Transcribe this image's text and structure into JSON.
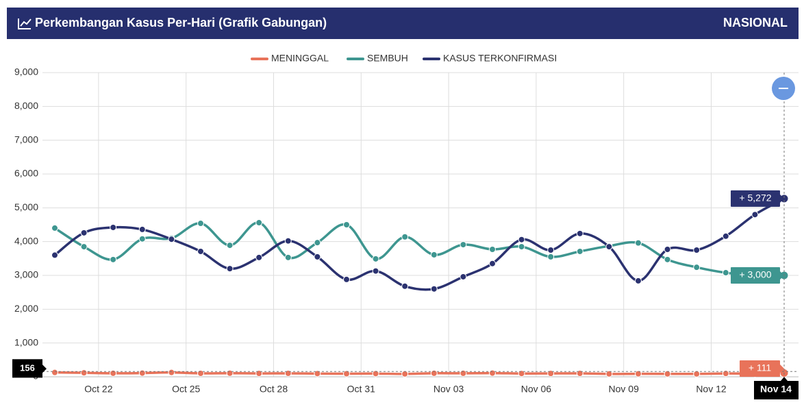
{
  "chart_data": {
    "type": "line",
    "title": "Perkembangan Kasus Per-Hari (Grafik Gabungan)",
    "region_label": "NASIONAL",
    "categories": [
      null,
      null,
      "Oct 22",
      null,
      null,
      "Oct 25",
      null,
      null,
      "Oct 28",
      null,
      null,
      "Oct 31",
      null,
      null,
      "Nov 03",
      null,
      null,
      "Nov 06",
      null,
      null,
      "Nov 09",
      null,
      null,
      "Nov 12",
      null,
      "Nov 14"
    ],
    "series": [
      {
        "name": "MENINGGAL",
        "color": "#e8735a",
        "values": [
          128,
          118,
          105,
          110,
          128,
          102,
          106,
          100,
          102,
          95,
          91,
          95,
          85,
          105,
          104,
          110,
          97,
          99,
          101,
          85,
          89,
          86,
          86,
          98,
          95,
          111
        ],
        "value_labels": [
          null,
          null,
          null,
          null,
          null,
          null,
          null,
          null,
          null,
          null,
          null,
          null,
          null,
          null,
          null,
          null,
          null,
          null,
          null,
          null,
          null,
          null,
          null,
          null,
          null,
          "+ 111"
        ]
      },
      {
        "name": "SEMBUH",
        "color": "#3e9690",
        "values": [
          4400,
          3850,
          3470,
          4080,
          4100,
          4540,
          3890,
          4560,
          3530,
          3970,
          4500,
          3490,
          4140,
          3610,
          3910,
          3770,
          3850,
          3550,
          3710,
          3870,
          3960,
          3470,
          3240,
          3080,
          3000,
          3000
        ],
        "value_labels": [
          null,
          null,
          null,
          null,
          null,
          null,
          null,
          null,
          null,
          null,
          null,
          null,
          null,
          null,
          null,
          null,
          null,
          null,
          null,
          null,
          null,
          null,
          null,
          null,
          null,
          "+ 3,000"
        ]
      },
      {
        "name": "KASUS TERKONFIRMASI",
        "color": "#2b3270",
        "values": [
          3600,
          4260,
          4420,
          4360,
          4070,
          3710,
          3200,
          3530,
          4020,
          3550,
          2880,
          3130,
          2680,
          2600,
          2960,
          3350,
          4060,
          3750,
          4240,
          3850,
          2840,
          3770,
          3750,
          4160,
          4800,
          5272
        ],
        "value_labels": [
          null,
          null,
          null,
          null,
          null,
          null,
          null,
          null,
          null,
          null,
          null,
          null,
          null,
          null,
          null,
          null,
          null,
          null,
          null,
          null,
          null,
          null,
          null,
          null,
          null,
          "+ 5,272"
        ]
      }
    ],
    "crosshair_value": 156,
    "ylim": [
      0,
      9000
    ],
    "yticks": [
      0,
      {
        "value": 1000,
        "label": "1,000"
      },
      {
        "value": 2000,
        "label": "2,000"
      },
      {
        "value": 3000,
        "label": "3,000"
      },
      {
        "value": 4000,
        "label": "4,000"
      },
      {
        "value": 5000,
        "label": "5,000"
      },
      {
        "value": 6000,
        "label": "6,000"
      },
      {
        "value": 7000,
        "label": "7,000"
      },
      {
        "value": 8000,
        "label": "8,000"
      },
      {
        "value": 9000,
        "label": "9,000"
      }
    ],
    "grid": true
  }
}
